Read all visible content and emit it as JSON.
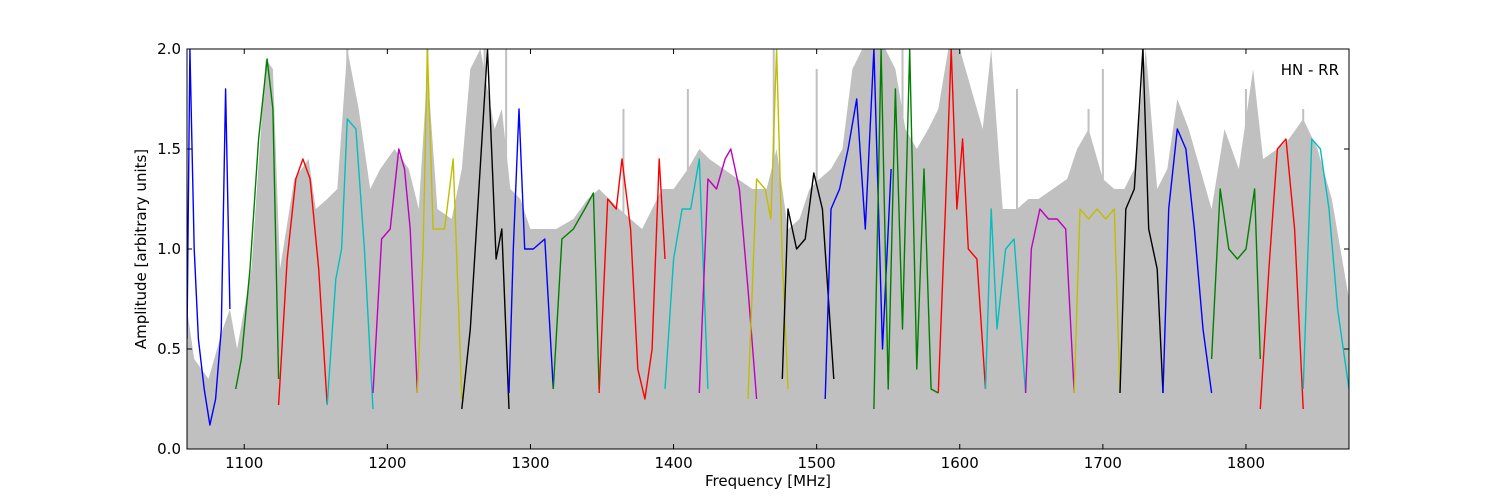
{
  "chart_data": {
    "type": "line",
    "title": "",
    "xlabel": "Frequency [MHz]",
    "ylabel": "Amplitude [arbitrary units]",
    "annotation": "HN - RR",
    "xlim": [
      1060,
      1872
    ],
    "ylim": [
      0.0,
      2.0
    ],
    "xticks": [
      1100,
      1200,
      1300,
      1400,
      1500,
      1600,
      1700,
      1800
    ],
    "yticks": [
      0.0,
      0.5,
      1.0,
      1.5,
      2.0
    ],
    "xtick_labels": [
      "1100",
      "1200",
      "1300",
      "1400",
      "1500",
      "1600",
      "1700",
      "1800"
    ],
    "ytick_labels": [
      "0.0",
      "0.5",
      "1.0",
      "1.5",
      "2.0"
    ],
    "grid": false,
    "background": {
      "color": "#c0c0c0",
      "x": [
        1060,
        1065,
        1075,
        1085,
        1090,
        1095,
        1105,
        1115,
        1120,
        1125,
        1135,
        1145,
        1150,
        1158,
        1165,
        1172,
        1180,
        1188,
        1195,
        1205,
        1215,
        1222,
        1228,
        1235,
        1245,
        1252,
        1258,
        1265,
        1270,
        1275,
        1280,
        1286,
        1293,
        1300,
        1310,
        1318,
        1330,
        1340,
        1348,
        1355,
        1362,
        1370,
        1378,
        1385,
        1392,
        1400,
        1410,
        1418,
        1425,
        1435,
        1445,
        1455,
        1465,
        1472,
        1480,
        1488,
        1495,
        1502,
        1510,
        1518,
        1525,
        1532,
        1540,
        1548,
        1555,
        1562,
        1570,
        1578,
        1585,
        1592,
        1600,
        1608,
        1616,
        1622,
        1630,
        1640,
        1648,
        1655,
        1665,
        1675,
        1682,
        1690,
        1700,
        1708,
        1715,
        1722,
        1730,
        1738,
        1745,
        1752,
        1760,
        1768,
        1776,
        1785,
        1795,
        1805,
        1812,
        1822,
        1830,
        1840,
        1850,
        1860,
        1872
      ],
      "y": [
        0.7,
        0.45,
        0.35,
        0.6,
        0.7,
        0.5,
        0.9,
        1.95,
        1.9,
        0.9,
        1.35,
        1.45,
        1.2,
        1.25,
        1.3,
        2.0,
        1.7,
        1.3,
        1.4,
        1.5,
        1.4,
        1.2,
        1.9,
        1.2,
        1.15,
        1.4,
        1.9,
        2.0,
        1.8,
        1.6,
        1.7,
        1.3,
        1.25,
        1.1,
        1.1,
        1.1,
        1.15,
        1.25,
        1.3,
        1.25,
        1.2,
        1.15,
        1.1,
        1.2,
        1.3,
        1.3,
        1.4,
        1.5,
        1.45,
        1.4,
        1.35,
        1.3,
        1.3,
        1.5,
        1.1,
        1.15,
        1.3,
        1.35,
        1.4,
        1.5,
        1.9,
        2.0,
        2.0,
        2.0,
        1.9,
        1.6,
        1.5,
        1.6,
        1.7,
        2.0,
        2.0,
        1.8,
        1.6,
        2.0,
        1.2,
        1.2,
        1.25,
        1.25,
        1.3,
        1.35,
        1.5,
        1.6,
        1.35,
        1.3,
        1.3,
        1.4,
        2.0,
        1.3,
        1.4,
        1.75,
        1.6,
        1.4,
        1.2,
        1.6,
        1.4,
        1.9,
        1.45,
        1.5,
        1.55,
        1.65,
        1.5,
        1.25,
        0.75
      ],
      "spikes": [
        [
          1172,
          2.0
        ],
        [
          1228,
          2.0
        ],
        [
          1268,
          2.0
        ],
        [
          1283,
          2.0
        ],
        [
          1365,
          1.7
        ],
        [
          1410,
          1.8
        ],
        [
          1470,
          2.0
        ],
        [
          1500,
          1.9
        ],
        [
          1540,
          2.0
        ],
        [
          1560,
          2.0
        ],
        [
          1593,
          2.0
        ],
        [
          1640,
          1.8
        ],
        [
          1690,
          1.7
        ],
        [
          1700,
          1.9
        ],
        [
          1728,
          2.0
        ],
        [
          1800,
          1.8
        ],
        [
          1840,
          1.7
        ]
      ]
    },
    "series": [
      {
        "color": "#0000ff",
        "x": [
          1060,
          1062,
          1065,
          1068,
          1072,
          1076,
          1080,
          1084,
          1087,
          1090
        ],
        "y": [
          0.55,
          2.0,
          1.0,
          0.55,
          0.3,
          0.12,
          0.25,
          0.6,
          1.8,
          0.7
        ]
      },
      {
        "color": "#008000",
        "x": [
          1094,
          1098,
          1104,
          1110,
          1116,
          1120,
          1124
        ],
        "y": [
          0.3,
          0.45,
          0.9,
          1.55,
          1.95,
          1.7,
          0.35
        ]
      },
      {
        "color": "#ff0000",
        "x": [
          1124,
          1130,
          1136,
          1141,
          1146,
          1152,
          1158
        ],
        "y": [
          0.22,
          0.95,
          1.35,
          1.45,
          1.35,
          0.9,
          0.22
        ]
      },
      {
        "color": "#00bfbf",
        "x": [
          1158,
          1164,
          1168,
          1172,
          1178,
          1184,
          1190
        ],
        "y": [
          0.22,
          0.85,
          1.0,
          1.65,
          1.6,
          1.0,
          0.2
        ]
      },
      {
        "color": "#bf00bf",
        "x": [
          1190,
          1196,
          1202,
          1208,
          1212,
          1216,
          1221
        ],
        "y": [
          0.28,
          1.05,
          1.1,
          1.5,
          1.4,
          1.1,
          0.28
        ]
      },
      {
        "color": "#bfbf00",
        "x": [
          1221,
          1225,
          1228,
          1232,
          1240,
          1246,
          1252
        ],
        "y": [
          0.28,
          1.0,
          2.0,
          1.1,
          1.1,
          1.45,
          0.25
        ]
      },
      {
        "color": "#000000",
        "x": [
          1252,
          1258,
          1264,
          1270,
          1276,
          1280,
          1285
        ],
        "y": [
          0.2,
          0.6,
          1.3,
          2.0,
          0.95,
          1.1,
          0.2
        ]
      },
      {
        "color": "#0000ff",
        "x": [
          1285,
          1288,
          1292,
          1296,
          1302,
          1310,
          1316
        ],
        "y": [
          0.28,
          1.0,
          1.7,
          1.0,
          1.0,
          1.05,
          0.3
        ]
      },
      {
        "color": "#008000",
        "x": [
          1316,
          1322,
          1330,
          1338,
          1344,
          1348
        ],
        "y": [
          0.3,
          1.05,
          1.1,
          1.2,
          1.28,
          0.3
        ]
      },
      {
        "color": "#ff0000",
        "x": [
          1348,
          1354,
          1360,
          1364,
          1370,
          1375,
          1380,
          1385,
          1390,
          1394
        ],
        "y": [
          0.28,
          1.25,
          1.2,
          1.45,
          1.1,
          0.4,
          0.25,
          0.5,
          1.45,
          0.95
        ]
      },
      {
        "color": "#00bfbf",
        "x": [
          1394,
          1400,
          1406,
          1412,
          1418,
          1424
        ],
        "y": [
          0.3,
          0.95,
          1.2,
          1.2,
          1.45,
          0.3
        ]
      },
      {
        "color": "#bf00bf",
        "x": [
          1418,
          1424,
          1430,
          1436,
          1440,
          1446,
          1452,
          1458
        ],
        "y": [
          0.28,
          1.35,
          1.3,
          1.45,
          1.5,
          1.3,
          0.8,
          0.25
        ]
      },
      {
        "color": "#bfbf00",
        "x": [
          1452,
          1458,
          1464,
          1468,
          1472,
          1476,
          1480
        ],
        "y": [
          0.25,
          1.35,
          1.3,
          1.15,
          2.0,
          0.95,
          0.3
        ]
      },
      {
        "color": "#000000",
        "x": [
          1476,
          1480,
          1486,
          1492,
          1498,
          1504,
          1512
        ],
        "y": [
          0.35,
          1.2,
          1.0,
          1.05,
          1.38,
          1.2,
          0.35
        ]
      },
      {
        "color": "#0000ff",
        "x": [
          1506,
          1510,
          1516,
          1522,
          1528,
          1534,
          1540,
          1546,
          1552
        ],
        "y": [
          0.25,
          1.2,
          1.3,
          1.5,
          1.75,
          1.1,
          2.0,
          0.5,
          1.4
        ]
      },
      {
        "color": "#008000",
        "x": [
          1540,
          1545,
          1550,
          1555,
          1560,
          1565,
          1570,
          1575,
          1580,
          1585
        ],
        "y": [
          0.2,
          2.0,
          0.3,
          1.8,
          0.6,
          2.0,
          0.4,
          1.4,
          0.3,
          0.28
        ]
      },
      {
        "color": "#ff0000",
        "x": [
          1585,
          1590,
          1594,
          1598,
          1602,
          1606,
          1612,
          1618
        ],
        "y": [
          0.28,
          1.2,
          2.0,
          1.2,
          1.55,
          1.0,
          0.95,
          0.3
        ]
      },
      {
        "color": "#00bfbf",
        "x": [
          1618,
          1622,
          1626,
          1632,
          1638,
          1646
        ],
        "y": [
          0.3,
          1.2,
          0.6,
          1.0,
          1.05,
          0.28
        ]
      },
      {
        "color": "#bf00bf",
        "x": [
          1646,
          1650,
          1656,
          1662,
          1668,
          1674,
          1680
        ],
        "y": [
          0.28,
          1.0,
          1.2,
          1.15,
          1.15,
          1.1,
          0.28
        ]
      },
      {
        "color": "#bfbf00",
        "x": [
          1680,
          1684,
          1690,
          1696,
          1702,
          1708,
          1712
        ],
        "y": [
          0.28,
          1.2,
          1.15,
          1.2,
          1.15,
          1.2,
          0.28
        ]
      },
      {
        "color": "#000000",
        "x": [
          1712,
          1716,
          1722,
          1728,
          1732,
          1738,
          1742
        ],
        "y": [
          0.28,
          1.2,
          1.3,
          2.0,
          1.1,
          0.9,
          0.28
        ]
      },
      {
        "color": "#0000ff",
        "x": [
          1742,
          1746,
          1752,
          1758,
          1764,
          1770,
          1776
        ],
        "y": [
          0.28,
          1.2,
          1.6,
          1.5,
          1.1,
          0.6,
          0.28
        ]
      },
      {
        "color": "#008000",
        "x": [
          1776,
          1782,
          1788,
          1794,
          1800,
          1806,
          1810
        ],
        "y": [
          0.45,
          1.3,
          1.0,
          0.95,
          1.0,
          1.3,
          0.45
        ]
      },
      {
        "color": "#ff0000",
        "x": [
          1810,
          1816,
          1822,
          1828,
          1834,
          1840
        ],
        "y": [
          0.2,
          0.9,
          1.5,
          1.55,
          1.1,
          0.2
        ]
      },
      {
        "color": "#00bfbf",
        "x": [
          1840,
          1846,
          1852,
          1858,
          1864,
          1872
        ],
        "y": [
          0.3,
          1.55,
          1.5,
          1.2,
          0.7,
          0.3
        ]
      }
    ]
  }
}
